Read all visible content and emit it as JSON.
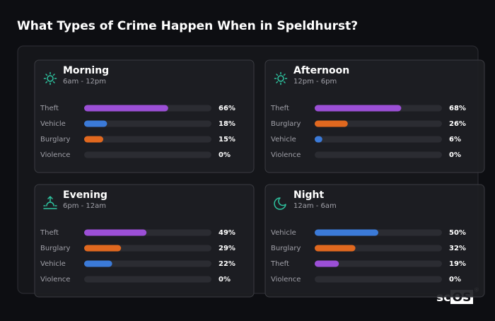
{
  "title": "What Types of Crime Happen When in Speldhurst?",
  "brand": {
    "left": "sc",
    "box": "OS",
    "mark": "®"
  },
  "chart_data": [
    {
      "type": "bar",
      "title": "Morning",
      "subtitle": "6am - 12pm",
      "categories": [
        "Theft",
        "Vehicle",
        "Burglary",
        "Violence"
      ],
      "values": [
        66,
        18,
        15,
        0
      ],
      "value_labels": [
        "66%",
        "18%",
        "15%",
        "0%"
      ],
      "colors": [
        "#9b4fd6",
        "#3b7ad8",
        "#e0681f",
        "#9b9ba3"
      ],
      "xlim": [
        0,
        100
      ]
    },
    {
      "type": "bar",
      "title": "Afternoon",
      "subtitle": "12pm - 6pm",
      "categories": [
        "Theft",
        "Burglary",
        "Vehicle",
        "Violence"
      ],
      "values": [
        68,
        26,
        6,
        0
      ],
      "value_labels": [
        "68%",
        "26%",
        "6%",
        "0%"
      ],
      "colors": [
        "#9b4fd6",
        "#e0681f",
        "#3b7ad8",
        "#9b9ba3"
      ],
      "xlim": [
        0,
        100
      ]
    },
    {
      "type": "bar",
      "title": "Evening",
      "subtitle": "6pm - 12am",
      "categories": [
        "Theft",
        "Burglary",
        "Vehicle",
        "Violence"
      ],
      "values": [
        49,
        29,
        22,
        0
      ],
      "value_labels": [
        "49%",
        "29%",
        "22%",
        "0%"
      ],
      "colors": [
        "#9b4fd6",
        "#e0681f",
        "#3b7ad8",
        "#9b9ba3"
      ],
      "xlim": [
        0,
        100
      ]
    },
    {
      "type": "bar",
      "title": "Night",
      "subtitle": "12am - 6am",
      "categories": [
        "Vehicle",
        "Burglary",
        "Theft",
        "Violence"
      ],
      "values": [
        50,
        32,
        19,
        0
      ],
      "value_labels": [
        "50%",
        "32%",
        "19%",
        "0%"
      ],
      "colors": [
        "#3b7ad8",
        "#e0681f",
        "#9b4fd6",
        "#9b9ba3"
      ],
      "xlim": [
        0,
        100
      ]
    }
  ]
}
